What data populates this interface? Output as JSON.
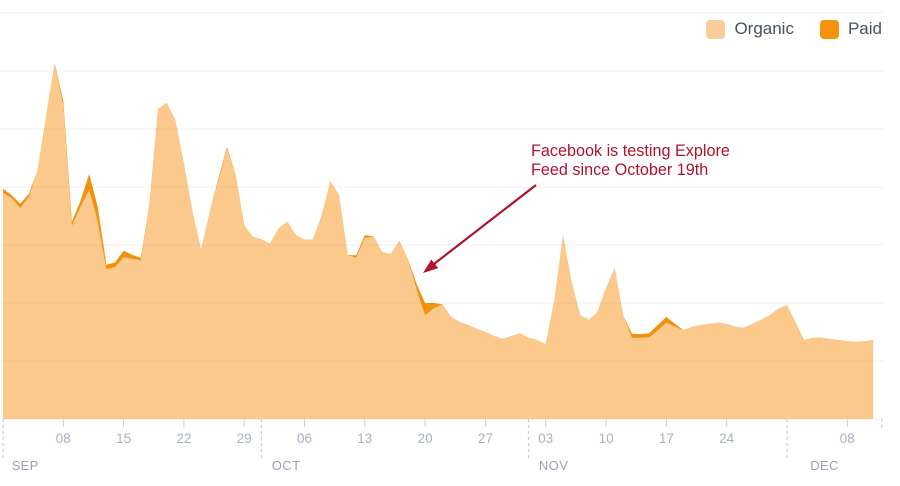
{
  "legend": {
    "items": [
      {
        "label": "Organic",
        "color": "#FACD9C"
      },
      {
        "label": "Paid",
        "color": "#F2930B"
      }
    ]
  },
  "annotation": {
    "text_line1": "Facebook is testing Explore",
    "text_line2": "Feed since October 19th",
    "color": "#B0122F"
  },
  "colors": {
    "organic_fill": "#FBC98C",
    "paid_fill": "#F0920E",
    "gridline": "rgba(0,0,0,0.055)",
    "tick_mark": "#C8CDD5",
    "month_separator": "#C6CBD4",
    "tick_label": "#A8B1C0",
    "month_label": "#98A2B0",
    "legend_text": "#47525E"
  },
  "x_axis": {
    "week_ticks": [
      {
        "label": "08",
        "day": 7
      },
      {
        "label": "15",
        "day": 14
      },
      {
        "label": "22",
        "day": 21
      },
      {
        "label": "29",
        "day": 28
      },
      {
        "label": "06",
        "day": 35
      },
      {
        "label": "13",
        "day": 42
      },
      {
        "label": "20",
        "day": 49
      },
      {
        "label": "27",
        "day": 56
      },
      {
        "label": "03",
        "day": 63
      },
      {
        "label": "10",
        "day": 70
      },
      {
        "label": "17",
        "day": 77
      },
      {
        "label": "24",
        "day": 84
      },
      {
        "label": "08",
        "day": 98
      }
    ],
    "months": [
      {
        "label": "SEP",
        "line_day": 0,
        "label_day": 1
      },
      {
        "label": "OCT",
        "line_day": 30,
        "label_day": 31.2
      },
      {
        "label": "NOV",
        "line_day": 61,
        "label_day": 62.2
      },
      {
        "label": "DEC",
        "line_day": 91,
        "label_day": 93.7
      }
    ],
    "right_edge_day": 102
  },
  "chart_data": {
    "type": "area",
    "stacked": true,
    "x_unit": "day",
    "x_start": "Sep 1",
    "x_end": "Dec 11",
    "ylim": [
      0,
      700
    ],
    "gridline_step": 100,
    "grid": true,
    "legend_position": "top-right",
    "annotation_target_x": "Oct 19",
    "series": [
      {
        "name": "Organic",
        "color": "#FBC98C",
        "values": [
          390,
          381,
          364,
          383,
          428,
          521,
          614,
          540,
          333,
          366,
          395,
          340,
          258,
          262,
          279,
          276,
          274,
          371,
          535,
          545,
          515,
          440,
          357,
          291,
          357,
          412,
          466,
          421,
          334,
          314,
          310,
          302,
          329,
          340,
          317,
          309,
          309,
          352,
          410,
          386,
          283,
          278,
          312,
          315,
          288,
          284,
          307,
          276,
          224,
          179,
          191,
          198,
          176,
          167,
          162,
          155,
          150,
          143,
          138,
          143,
          148,
          140,
          136,
          129,
          205,
          316,
          236,
          179,
          171,
          184,
          226,
          260,
          178,
          140,
          140,
          141,
          153,
          166,
          159,
          153,
          159,
          162,
          164,
          166,
          164,
          159,
          157,
          164,
          171,
          179,
          190,
          196,
          166,
          136,
          140,
          140,
          138,
          136,
          134,
          133,
          134,
          136
        ]
      },
      {
        "name": "Paid",
        "color": "#F0920E",
        "values": [
          7,
          5,
          7,
          5,
          0,
          0,
          0,
          8,
          7,
          10,
          28,
          25,
          8,
          8,
          11,
          7,
          4,
          0,
          0,
          0,
          0,
          0,
          0,
          0,
          0,
          3,
          3,
          0,
          0,
          0,
          0,
          0,
          0,
          0,
          0,
          0,
          0,
          0,
          0,
          0,
          0,
          4,
          5,
          0,
          0,
          0,
          0,
          0,
          9,
          21,
          9,
          0,
          0,
          0,
          0,
          0,
          0,
          0,
          0,
          0,
          0,
          0,
          0,
          0,
          0,
          0,
          0,
          0,
          0,
          0,
          0,
          0,
          0,
          7,
          6,
          7,
          9,
          10,
          5,
          0,
          0,
          0,
          0,
          0,
          0,
          0,
          0,
          0,
          0,
          0,
          0,
          0,
          0,
          0,
          0,
          0,
          0,
          0,
          0,
          0,
          0,
          0
        ]
      }
    ]
  }
}
